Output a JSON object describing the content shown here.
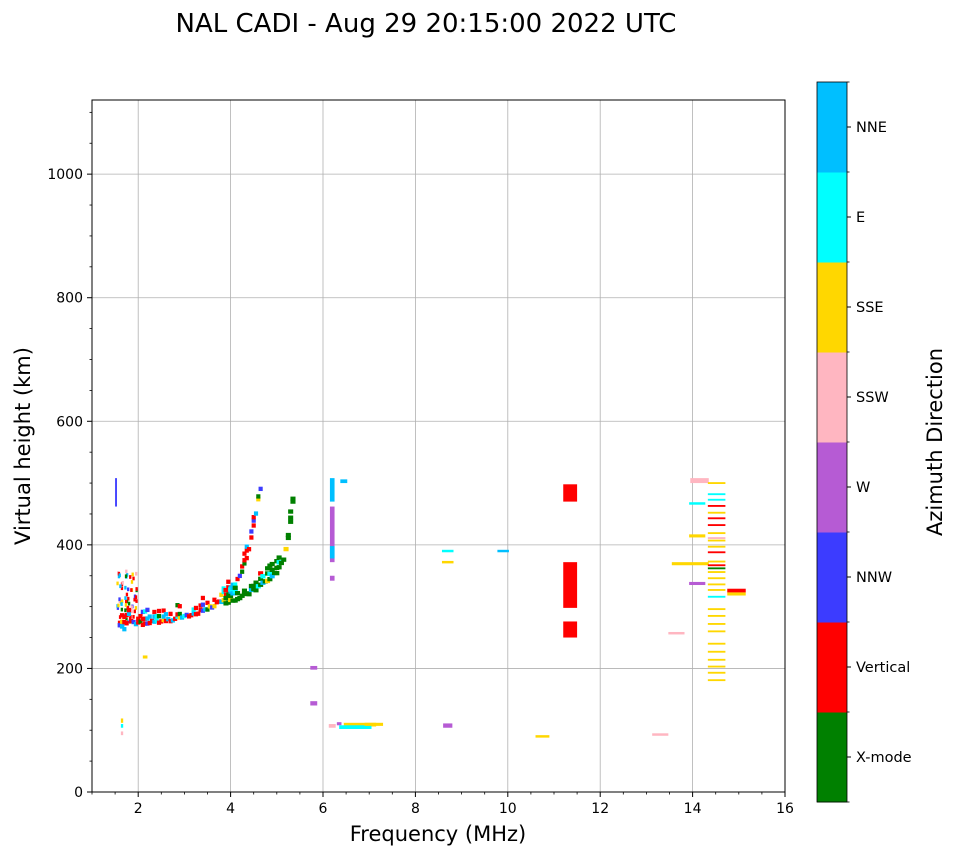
{
  "chart_data": {
    "type": "scatter",
    "title": "NAL CADI - Aug 29 20:15:00 2022 UTC",
    "xlabel": "Frequency (MHz)",
    "ylabel": "Virtual height (km)",
    "xlim": [
      1,
      16
    ],
    "ylim": [
      0,
      1120
    ],
    "xticks": [
      2,
      4,
      6,
      8,
      10,
      12,
      14,
      16
    ],
    "yticks": [
      0,
      200,
      400,
      600,
      800,
      1000
    ],
    "grid": true,
    "colorbar": {
      "label": "Azimuth Direction",
      "categories": [
        {
          "name": "X-mode",
          "color": "#008000"
        },
        {
          "name": "Vertical",
          "color": "#ff0000"
        },
        {
          "name": "NNW",
          "color": "#3c3cff"
        },
        {
          "name": "W",
          "color": "#b65bd4"
        },
        {
          "name": "SSW",
          "color": "#ffb6c1"
        },
        {
          "name": "SSE",
          "color": "#ffd700"
        },
        {
          "name": "E",
          "color": "#00ffff"
        },
        {
          "name": "NNE",
          "color": "#00bfff"
        }
      ]
    },
    "segments": [
      {
        "cat": 2,
        "f": 1.52,
        "h1": 462,
        "h2": 508,
        "df": 0.04
      },
      {
        "cat": 5,
        "f": 1.65,
        "h1": 112,
        "h2": 119,
        "df": 0.05
      },
      {
        "cat": 6,
        "f": 1.65,
        "h1": 104,
        "h2": 110,
        "df": 0.05
      },
      {
        "cat": 4,
        "f": 1.65,
        "h1": 92,
        "h2": 98,
        "df": 0.05
      },
      {
        "cat": 5,
        "f": 2.15,
        "h1": 216,
        "h2": 221,
        "df": 0.1
      },
      {
        "cat": 3,
        "f": 6.2,
        "h1": 372,
        "h2": 462,
        "df": 0.1
      },
      {
        "cat": 7,
        "f": 6.2,
        "h1": 470,
        "h2": 508,
        "df": 0.1
      },
      {
        "cat": 7,
        "f": 6.2,
        "h1": 378,
        "h2": 398,
        "df": 0.1
      },
      {
        "cat": 3,
        "f": 6.2,
        "h1": 342,
        "h2": 350,
        "df": 0.1
      },
      {
        "cat": 3,
        "f": 5.8,
        "h1": 198,
        "h2": 204,
        "df": 0.15
      },
      {
        "cat": 3,
        "f": 5.8,
        "h1": 140,
        "h2": 147,
        "df": 0.15
      },
      {
        "cat": 7,
        "f": 6.45,
        "h1": 500,
        "h2": 506,
        "df": 0.15
      },
      {
        "cat": 3,
        "f": 6.35,
        "h1": 108,
        "h2": 113,
        "df": 0.1
      },
      {
        "cat": 4,
        "f": 6.2,
        "h1": 104,
        "h2": 110,
        "df": 0.15
      },
      {
        "cat": 5,
        "f": 6.8,
        "h1": 106,
        "h2": 112,
        "df": 0.7
      },
      {
        "cat": 6,
        "f": 6.7,
        "h1": 102,
        "h2": 108,
        "df": 0.7
      },
      {
        "cat": 5,
        "f": 7.1,
        "h1": 107,
        "h2": 112,
        "df": 0.4
      },
      {
        "cat": 3,
        "f": 8.7,
        "h1": 104,
        "h2": 111,
        "df": 0.2
      },
      {
        "cat": 6,
        "f": 8.7,
        "h1": 388,
        "h2": 392,
        "df": 0.25
      },
      {
        "cat": 5,
        "f": 8.7,
        "h1": 370,
        "h2": 374,
        "df": 0.25
      },
      {
        "cat": 7,
        "f": 9.9,
        "h1": 388,
        "h2": 392,
        "df": 0.25
      },
      {
        "cat": 5,
        "f": 10.75,
        "h1": 88,
        "h2": 92,
        "df": 0.3
      },
      {
        "cat": 1,
        "f": 11.35,
        "h1": 470,
        "h2": 498,
        "df": 0.3
      },
      {
        "cat": 1,
        "f": 11.35,
        "h1": 298,
        "h2": 372,
        "df": 0.3
      },
      {
        "cat": 1,
        "f": 11.35,
        "h1": 250,
        "h2": 276,
        "df": 0.3
      },
      {
        "cat": 4,
        "f": 13.3,
        "h1": 91,
        "h2": 95,
        "df": 0.35
      },
      {
        "cat": 4,
        "f": 13.65,
        "h1": 255,
        "h2": 259,
        "df": 0.35
      },
      {
        "cat": 5,
        "f": 13.95,
        "h1": 367,
        "h2": 372,
        "df": 0.8
      },
      {
        "cat": 5,
        "f": 14.1,
        "h1": 412,
        "h2": 417,
        "df": 0.35
      },
      {
        "cat": 3,
        "f": 14.1,
        "h1": 335,
        "h2": 340,
        "df": 0.35
      },
      {
        "cat": 6,
        "f": 14.1,
        "h1": 465,
        "h2": 469,
        "df": 0.35
      },
      {
        "cat": 4,
        "f": 14.15,
        "h1": 500,
        "h2": 508,
        "df": 0.4
      },
      {
        "cat": 1,
        "f": 14.95,
        "h1": 323,
        "h2": 329,
        "df": 0.4
      },
      {
        "cat": 5,
        "f": 14.95,
        "h1": 318,
        "h2": 323,
        "df": 0.4
      }
    ],
    "ladder": {
      "f": 14.52,
      "df": 0.38,
      "heights": [
        181,
        193,
        203,
        214,
        227,
        240,
        260,
        272,
        285,
        296,
        316,
        327,
        336,
        346,
        356,
        362,
        367,
        373,
        388,
        397,
        407,
        411,
        419,
        432,
        443,
        452,
        463,
        473,
        482,
        500
      ],
      "cats": [
        5,
        5,
        5,
        5,
        5,
        5,
        5,
        5,
        5,
        5,
        6,
        5,
        5,
        5,
        5,
        0,
        1,
        5,
        1,
        5,
        5,
        4,
        5,
        1,
        1,
        5,
        1,
        6,
        6,
        5
      ]
    },
    "trace": {
      "points": [
        [
          1.6,
          280
        ],
        [
          1.7,
          275
        ],
        [
          1.8,
          295
        ],
        [
          1.9,
          282
        ],
        [
          2.1,
          282
        ],
        [
          2.5,
          286
        ],
        [
          2.9,
          291
        ],
        [
          3.3,
          300
        ],
        [
          3.6,
          310
        ],
        [
          3.85,
          322
        ],
        [
          4.05,
          337
        ],
        [
          4.2,
          358
        ],
        [
          4.32,
          382
        ],
        [
          4.42,
          410
        ],
        [
          4.52,
          445
        ],
        [
          4.6,
          480
        ],
        [
          4.66,
          505
        ]
      ],
      "dh": 7
    },
    "x_trace": {
      "points": [
        [
          3.9,
          315
        ],
        [
          4.2,
          325
        ],
        [
          4.5,
          335
        ],
        [
          4.8,
          352
        ],
        [
          5.0,
          365
        ],
        [
          5.15,
          388
        ],
        [
          5.25,
          418
        ],
        [
          5.32,
          455
        ],
        [
          5.38,
          498
        ]
      ],
      "dh": 7
    }
  }
}
